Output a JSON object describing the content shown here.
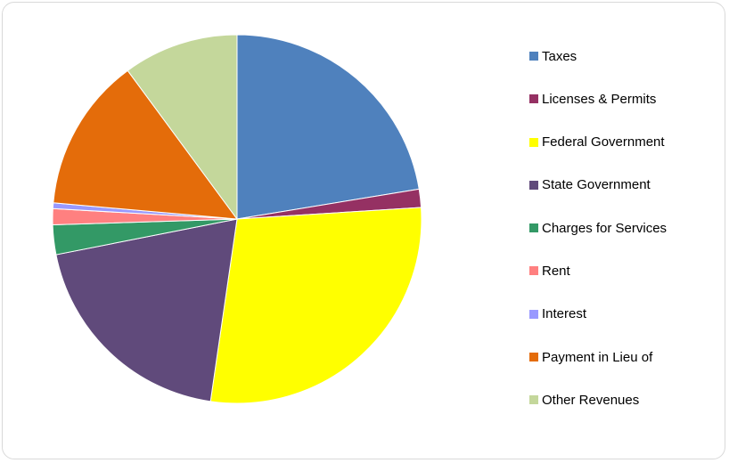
{
  "chart_data": {
    "type": "pie",
    "title": "",
    "legend_position": "right",
    "categories": [
      "Taxes",
      "Licenses & Permits",
      "Federal Government",
      "State Government",
      "Charges for Services",
      "Rent",
      "Interest",
      "Payment in Lieu of",
      "Other Revenues"
    ],
    "values": [
      22.4,
      1.6,
      28.3,
      19.6,
      2.6,
      1.4,
      0.5,
      13.5,
      10.1
    ],
    "unit": "%",
    "colors": [
      "#4f81bd",
      "#953163",
      "#ffff00",
      "#604a7b",
      "#339966",
      "#ff8080",
      "#9999ff",
      "#e46c0a",
      "#c4d79b"
    ],
    "start_angle_deg": 0,
    "direction": "clockwise"
  }
}
